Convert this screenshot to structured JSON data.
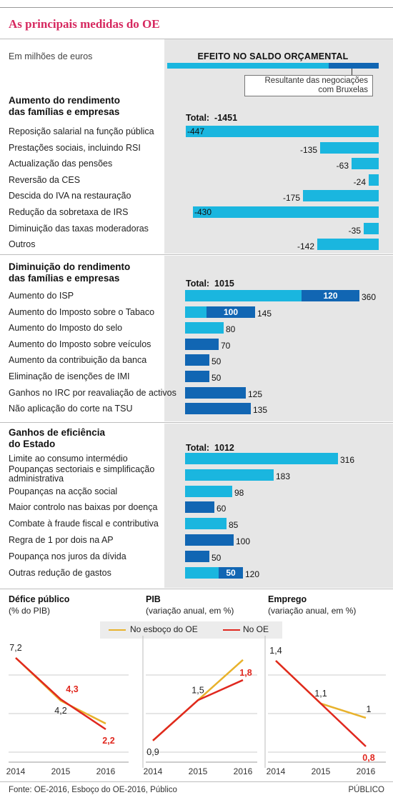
{
  "header": {
    "title": "As principais medidas do OE",
    "unit": "Em milhões de euros",
    "effect_title": "EFEITO NO SALDO ORÇAMENTAL",
    "callout_line1": "Resultante das negociações",
    "callout_line2": "com Bruxelas"
  },
  "colors": {
    "light": "#1ab6df",
    "dark": "#1166b3",
    "accent": "#d6285f",
    "draft": "#e8b22c",
    "final": "#e0281f"
  },
  "chart_data": [
    {
      "type": "bar",
      "title_line1": "Aumento do rendimento",
      "title_line2": "das famílias e empresas",
      "total_label": "Total:",
      "total": "-1451",
      "rows": [
        {
          "label": "Reposição salarial na função pública",
          "value": -447,
          "brussels": 0,
          "value_label": "-447"
        },
        {
          "label": "Prestações sociais, incluindo RSI",
          "value": -135,
          "brussels": 0,
          "value_label": "-135"
        },
        {
          "label": "Actualização das pensões",
          "value": -63,
          "brussels": 0,
          "value_label": "-63"
        },
        {
          "label": "Reversão da CES",
          "value": -24,
          "brussels": 0,
          "value_label": "-24"
        },
        {
          "label": "Descida do IVA na restauração",
          "value": -175,
          "brussels": 0,
          "value_label": "-175"
        },
        {
          "label": "Redução da sobretaxa de IRS",
          "value": -430,
          "brussels": 0,
          "value_label": "-430"
        },
        {
          "label": "Diminuição das taxas moderadoras",
          "value": -35,
          "brussels": 0,
          "value_label": "-35"
        },
        {
          "label": "Outros",
          "value": -142,
          "brussels": 0,
          "value_label": "-142"
        }
      ]
    },
    {
      "type": "bar",
      "title_line1": "Diminuição do rendimento",
      "title_line2": "das famílias e empresas",
      "total_label": "Total:",
      "total": "1015",
      "rows": [
        {
          "label": "Aumento do ISP",
          "value": 360,
          "brussels": 120,
          "value_label": "360",
          "inner_label": "120"
        },
        {
          "label": "Aumento do Imposto sobre o Tabaco",
          "value": 145,
          "brussels": 100,
          "value_label": "145",
          "inner_label": "100"
        },
        {
          "label": "Aumento do Imposto do selo",
          "value": 80,
          "brussels": 0,
          "value_label": "80"
        },
        {
          "label": "Aumento do Imposto sobre veículos",
          "value": 70,
          "brussels": 70,
          "value_label": "70"
        },
        {
          "label": "Aumento da contribuição da banca",
          "value": 50,
          "brussels": 50,
          "value_label": "50"
        },
        {
          "label": "Eliminação de isenções de IMI",
          "value": 50,
          "brussels": 50,
          "value_label": "50"
        },
        {
          "label": "Ganhos no IRC por  reavaliação de activos",
          "value": 125,
          "brussels": 125,
          "value_label": "125"
        },
        {
          "label": "Não aplicação do corte na TSU",
          "value": 135,
          "brussels": 135,
          "value_label": "135"
        }
      ]
    },
    {
      "type": "bar",
      "title_line1": "Ganhos de eficiência",
      "title_line2": "do Estado",
      "total_label": "Total:",
      "total": "1012",
      "rows": [
        {
          "label": "Limite ao consumo intermédio",
          "value": 316,
          "brussels": 0,
          "value_label": "316"
        },
        {
          "label": "Poupanças sectoriais e simplificação administrativa",
          "value": 183,
          "brussels": 0,
          "value_label": "183"
        },
        {
          "label": "Poupanças na acção social",
          "value": 98,
          "brussels": 0,
          "value_label": "98"
        },
        {
          "label": "Maior controlo nas baixas por doença",
          "value": 60,
          "brussels": 60,
          "value_label": "60"
        },
        {
          "label": "Combate à fraude fiscal e contributiva",
          "value": 85,
          "brussels": 0,
          "value_label": "85"
        },
        {
          "label": "Regra de 1 por dois na AP",
          "value": 100,
          "brussels": 100,
          "value_label": "100"
        },
        {
          "label": "Poupança nos juros da dívida",
          "value": 50,
          "brussels": 50,
          "value_label": "50"
        },
        {
          "label": "Outras redução de gastos",
          "value": 120,
          "brussels": 50,
          "value_label": "120",
          "inner_label": "50"
        }
      ]
    },
    {
      "type": "line",
      "title": "Défice público",
      "subtitle": "(% do PIB)",
      "x": [
        "2014",
        "2015",
        "2016"
      ],
      "series": [
        {
          "name": "No esboço do OE",
          "values": [
            7.2,
            4.2,
            2.6
          ]
        },
        {
          "name": "No OE",
          "values": [
            7.2,
            4.3,
            2.2
          ]
        }
      ],
      "ylim": [
        0,
        8
      ],
      "labels": [
        {
          "text": "7,2",
          "x": "2014",
          "y": 7.2,
          "color": "dark"
        },
        {
          "text": "4,3",
          "x": "2015",
          "y": 4.3,
          "color": "final"
        },
        {
          "text": "4,2",
          "x": "2015",
          "y": 4.2,
          "color": "dark"
        },
        {
          "text": "2,2",
          "x": "2016",
          "y": 2.2,
          "color": "final"
        }
      ]
    },
    {
      "type": "line",
      "title": "PIB",
      "subtitle": "(variação anual, em %)",
      "x": [
        "2014",
        "2015",
        "2016"
      ],
      "series": [
        {
          "name": "No esboço do OE",
          "values": [
            0.9,
            1.5,
            2.1
          ]
        },
        {
          "name": "No OE",
          "values": [
            0.9,
            1.5,
            1.8
          ]
        }
      ],
      "ylim": [
        0.6,
        2.3
      ],
      "labels": [
        {
          "text": "0,9",
          "x": "2014",
          "y": 0.9,
          "color": "dark"
        },
        {
          "text": "1,5",
          "x": "2015",
          "y": 1.5,
          "color": "dark"
        },
        {
          "text": "1,8",
          "x": "2016",
          "y": 1.8,
          "color": "final"
        }
      ]
    },
    {
      "type": "line",
      "title": "Emprego",
      "subtitle": "(variação anual, em %)",
      "x": [
        "2014",
        "2015",
        "2016"
      ],
      "series": [
        {
          "name": "No esboço do OE",
          "values": [
            1.4,
            1.1,
            1.0
          ]
        },
        {
          "name": "No OE",
          "values": [
            1.4,
            1.1,
            0.8
          ]
        }
      ],
      "ylim": [
        0.7,
        1.5
      ],
      "labels": [
        {
          "text": "1,4",
          "x": "2014",
          "y": 1.4,
          "color": "dark"
        },
        {
          "text": "1,1",
          "x": "2015",
          "y": 1.1,
          "color": "dark"
        },
        {
          "text": "1",
          "x": "2016",
          "y": 1.0,
          "color": "dark"
        },
        {
          "text": "0,8",
          "x": "2016",
          "y": 0.8,
          "color": "final"
        }
      ]
    }
  ],
  "legend": {
    "draft": "No esboço do OE",
    "final": "No OE"
  },
  "footer": {
    "source": "Fonte: OE-2016, Esboço do OE-2016, Público",
    "brand": "PÚBLICO"
  }
}
